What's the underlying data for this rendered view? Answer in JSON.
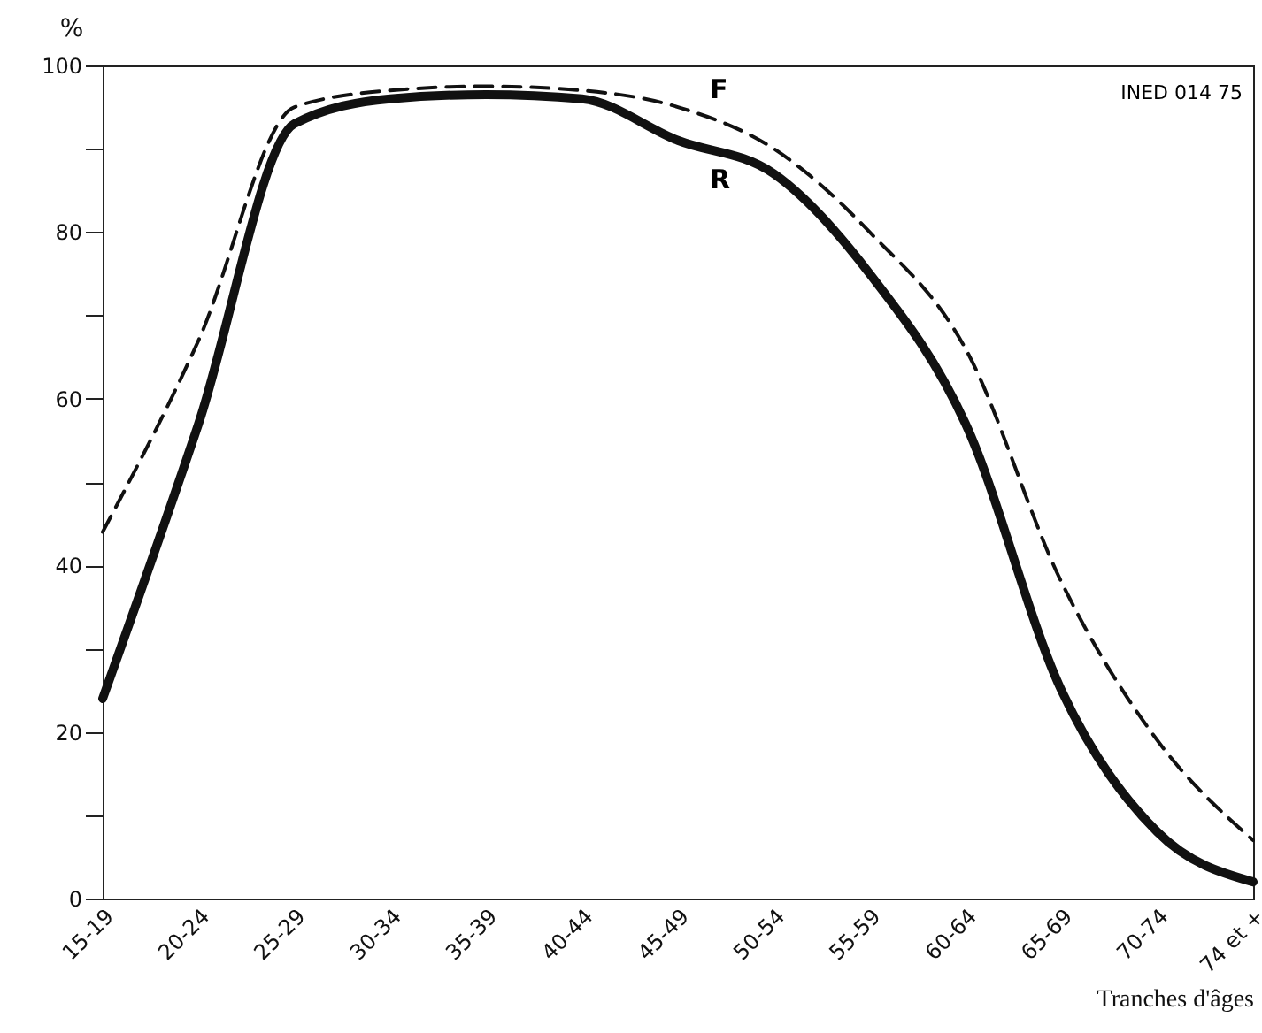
{
  "chart_data": {
    "type": "line",
    "xlabel": "Tranches d'âges",
    "ylabel": "%",
    "categories": [
      "15-19",
      "20-24",
      "25-29",
      "30-34",
      "35-39",
      "40-44",
      "45-49",
      "50-54",
      "55-59",
      "60-64",
      "65-69",
      "70-74",
      "74 et +"
    ],
    "series": [
      {
        "name": "F",
        "color": "#111111",
        "line_style": "dashed",
        "values": [
          44,
          67,
          95,
          97,
          97.5,
          97,
          95,
          90,
          80,
          66,
          38,
          19,
          7
        ]
      },
      {
        "name": "R",
        "color": "#111111",
        "line_style": "solid",
        "values": [
          24,
          57,
          93,
          96,
          96.5,
          96,
          91,
          87,
          75,
          57,
          25,
          8,
          2
        ]
      }
    ],
    "ylim": [
      0,
      100
    ],
    "yticks": [
      0,
      {
        "value": 10,
        "label": null
      },
      20,
      {
        "value": 30,
        "label": null
      },
      40,
      {
        "value": 50,
        "label": null
      },
      60,
      {
        "value": 70,
        "label": null
      },
      80,
      {
        "value": 90,
        "label": null
      },
      100
    ],
    "grid": false,
    "legend": false,
    "marker": "none",
    "annotations": [
      "INED 014 75"
    ]
  }
}
